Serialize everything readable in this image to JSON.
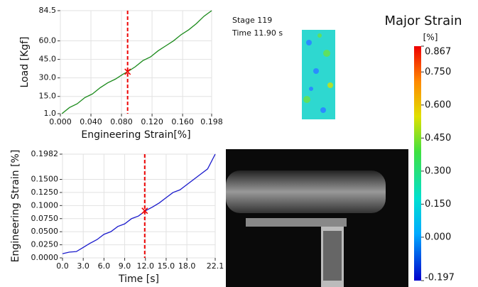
{
  "chart_data": [
    {
      "type": "line",
      "xlabel": "Engineering Strain[%]",
      "ylabel": "Load [Kgf]",
      "color": "#1a8a1a",
      "grid": true,
      "xlim": [
        0,
        0.198
      ],
      "ylim": [
        1,
        84.5
      ],
      "xticks": [
        {
          "value": 0,
          "label": "0.000"
        },
        {
          "value": 0.04,
          "label": "0.040"
        },
        {
          "value": 0.08,
          "label": "0.080"
        },
        {
          "value": 0.12,
          "label": "0.120"
        },
        {
          "value": 0.16,
          "label": "0.160"
        },
        0.198
      ],
      "yticks": [
        {
          "value": 1,
          "label": "1.0"
        },
        {
          "value": 15,
          "label": "15.0"
        },
        {
          "value": 30,
          "label": "30.0"
        },
        {
          "value": 45,
          "label": "45.0"
        },
        {
          "value": 60,
          "label": "60.0"
        },
        84.5
      ],
      "x": [
        0.002,
        0.012,
        0.022,
        0.032,
        0.042,
        0.052,
        0.062,
        0.072,
        0.082,
        0.088,
        0.098,
        0.108,
        0.118,
        0.128,
        0.138,
        0.148,
        0.158,
        0.168,
        0.178,
        0.188,
        0.198
      ],
      "values": [
        1,
        6,
        9,
        14,
        17,
        22,
        26,
        29,
        33,
        35,
        39,
        44,
        47,
        52,
        56,
        60,
        65,
        69,
        74,
        80,
        84.5
      ],
      "cursor": {
        "x": 0.088,
        "y": 35
      }
    },
    {
      "type": "line",
      "xlabel": "Time [s]",
      "ylabel": "Engineering Strain [%]",
      "color": "#1a1acc",
      "grid": true,
      "xlim": [
        0,
        22.1
      ],
      "ylim": [
        0,
        0.1982
      ],
      "xticks": [
        {
          "value": 0,
          "label": "0.0"
        },
        {
          "value": 3,
          "label": "3.0"
        },
        {
          "value": 6,
          "label": "6.0"
        },
        {
          "value": 9,
          "label": "9.0"
        },
        {
          "value": 12,
          "label": "12.0"
        },
        {
          "value": 15,
          "label": "15.0"
        },
        {
          "value": 18,
          "label": "18.0"
        },
        22.1
      ],
      "yticks": [
        {
          "value": 0,
          "label": "0.0000"
        },
        {
          "value": 0.025,
          "label": "0.0250"
        },
        {
          "value": 0.05,
          "label": "0.0500"
        },
        {
          "value": 0.075,
          "label": "0.0750"
        },
        {
          "value": 0.1,
          "label": "0.1000"
        },
        {
          "value": 0.125,
          "label": "0.1250"
        },
        {
          "value": 0.15,
          "label": "0.1500"
        },
        0.1982
      ],
      "x": [
        0,
        1,
        2,
        3,
        4,
        5,
        6,
        7,
        8,
        9,
        10,
        11,
        12,
        13,
        14,
        15,
        16,
        17,
        18,
        19,
        20,
        21,
        22.1
      ],
      "values": [
        0.008,
        0.011,
        0.012,
        0.02,
        0.028,
        0.035,
        0.045,
        0.05,
        0.06,
        0.065,
        0.075,
        0.08,
        0.09,
        0.097,
        0.105,
        0.115,
        0.125,
        0.13,
        0.14,
        0.15,
        0.16,
        0.17,
        0.1982
      ],
      "cursor": {
        "x": 11.9,
        "y": 0.09
      }
    },
    {
      "type": "colorbar",
      "title": "Major Strain",
      "unit": "[%]",
      "ylim": [
        -0.197,
        0.867
      ],
      "yticks": [
        -0.197,
        {
          "value": 0,
          "label": "0.000"
        },
        {
          "value": 0.15,
          "label": "0.150"
        },
        {
          "value": 0.3,
          "label": "0.300"
        },
        {
          "value": 0.45,
          "label": "0.450"
        },
        {
          "value": 0.6,
          "label": "0.600"
        },
        {
          "value": 0.75,
          "label": "0.750"
        },
        0.867
      ]
    }
  ],
  "stage": "Stage 119",
  "time": "Time  11.90 s"
}
